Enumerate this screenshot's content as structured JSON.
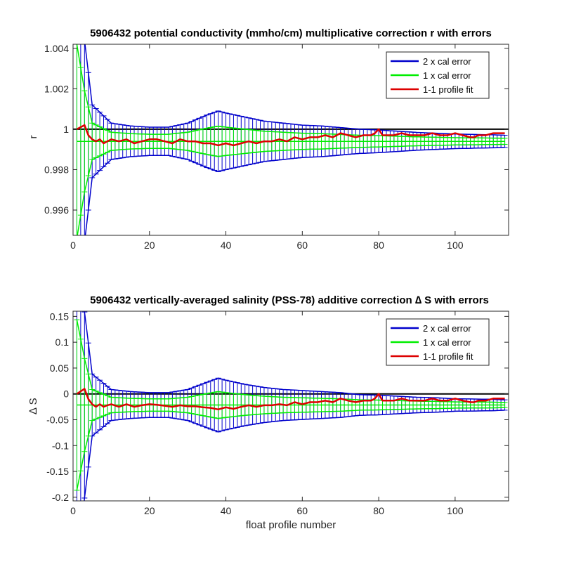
{
  "colors": {
    "two_cal": "#0000cc",
    "one_cal": "#00ee00",
    "fit": "#dd0000",
    "zero_line": "#000000"
  },
  "chart_data": [
    {
      "type": "line",
      "title": "5906432 potential conductivity (mmho/cm) multiplicative correction r with errors",
      "xlabel": "",
      "ylabel": "r",
      "xlim": [
        0,
        114
      ],
      "ylim": [
        0.99475,
        1.0042
      ],
      "xticks": [
        "0",
        "20",
        "40",
        "60",
        "80",
        "100"
      ],
      "xtick_values": [
        0,
        20,
        40,
        60,
        80,
        100
      ],
      "yticks": [
        "0.996",
        "0.998",
        "1",
        "1.002",
        "1.004"
      ],
      "ytick_values": [
        0.996,
        0.998,
        1.0,
        1.002,
        1.004
      ],
      "reference_line": 1.0,
      "legend": {
        "position": "top-right",
        "entries": [
          "2 x cal error",
          "1 x cal error",
          "1-1 profile fit"
        ]
      },
      "x_range": [
        1,
        113
      ],
      "series": [
        {
          "name": "1-1 profile fit",
          "x": [
            1,
            2,
            3,
            4,
            5,
            6,
            7,
            8,
            9,
            10,
            12,
            14,
            16,
            18,
            20,
            22,
            24,
            26,
            28,
            30,
            32,
            34,
            36,
            38,
            40,
            42,
            44,
            46,
            48,
            50,
            52,
            54,
            56,
            58,
            60,
            62,
            64,
            66,
            68,
            70,
            72,
            74,
            76,
            78,
            79,
            80,
            81,
            82,
            84,
            86,
            88,
            90,
            92,
            94,
            96,
            98,
            100,
            102,
            104,
            105,
            106,
            108,
            110,
            112,
            113
          ],
          "y": [
            1.0,
            1.0001,
            1.0002,
            0.9997,
            0.9995,
            0.9994,
            0.9995,
            0.9993,
            0.9994,
            0.9995,
            0.9994,
            0.9995,
            0.9993,
            0.9994,
            0.9995,
            0.9995,
            0.9994,
            0.9993,
            0.9995,
            0.9994,
            0.9994,
            0.9993,
            0.9993,
            0.9992,
            0.9993,
            0.9992,
            0.9993,
            0.9994,
            0.9993,
            0.9994,
            0.9994,
            0.9995,
            0.9994,
            0.9996,
            0.9995,
            0.9996,
            0.9996,
            0.9997,
            0.9996,
            0.9998,
            0.9997,
            0.9996,
            0.9997,
            0.9997,
            0.9998,
            1.0,
            0.9997,
            0.9997,
            0.9997,
            0.9998,
            0.9997,
            0.9997,
            0.9997,
            0.9998,
            0.9997,
            0.9997,
            0.9998,
            0.9997,
            0.9996,
            0.9996,
            0.9997,
            0.9997,
            0.9998,
            0.9998,
            0.9998
          ]
        },
        {
          "name": "1 x cal error",
          "center": 0.9994,
          "x": [
            1,
            3,
            5,
            10,
            15,
            20,
            25,
            30,
            35,
            38,
            40,
            45,
            50,
            55,
            60,
            65,
            70,
            75,
            80,
            85,
            90,
            95,
            100,
            105,
            110,
            113
          ],
          "err": [
            0.0048,
            0.0025,
            0.0009,
            0.00045,
            0.00038,
            0.00035,
            0.00035,
            0.00045,
            0.00065,
            0.00075,
            0.0007,
            0.0006,
            0.0005,
            0.00045,
            0.0004,
            0.00038,
            0.00034,
            0.0003,
            0.00028,
            0.00025,
            0.00022,
            0.0002,
            0.00018,
            0.00017,
            0.00016,
            0.00015
          ]
        },
        {
          "name": "2 x cal error",
          "center": 0.9994,
          "x": [
            1,
            3,
            5,
            10,
            15,
            20,
            25,
            30,
            35,
            38,
            40,
            45,
            50,
            55,
            60,
            65,
            70,
            75,
            80,
            85,
            90,
            95,
            100,
            105,
            110,
            113
          ],
          "err": [
            0.0096,
            0.005,
            0.0018,
            0.0009,
            0.00076,
            0.0007,
            0.0007,
            0.0009,
            0.0013,
            0.0015,
            0.0014,
            0.0012,
            0.001,
            0.0009,
            0.0008,
            0.00076,
            0.00068,
            0.0006,
            0.00056,
            0.0005,
            0.00044,
            0.0004,
            0.00036,
            0.00034,
            0.00032,
            0.0003
          ]
        }
      ]
    },
    {
      "type": "line",
      "title": "5906432 vertically-averaged salinity (PSS-78) additive correction ∆ S with errors",
      "xlabel": "float profile number",
      "ylabel": "∆ S",
      "xlim": [
        0,
        114
      ],
      "ylim": [
        -0.207,
        0.16
      ],
      "xticks": [
        "0",
        "20",
        "40",
        "60",
        "80",
        "100"
      ],
      "xtick_values": [
        0,
        20,
        40,
        60,
        80,
        100
      ],
      "yticks": [
        "-0.2",
        "-0.15",
        "-0.1",
        "-0.05",
        "0",
        "0.05",
        "0.1",
        "0.15"
      ],
      "ytick_values": [
        -0.2,
        -0.15,
        -0.1,
        -0.05,
        0,
        0.05,
        0.1,
        0.15
      ],
      "reference_line": 0,
      "legend": {
        "position": "top-right",
        "entries": [
          "2 x cal error",
          "1 x cal error",
          "1-1 profile fit"
        ]
      },
      "x_range": [
        1,
        113
      ],
      "series": [
        {
          "name": "1-1 profile fit",
          "x": [
            1,
            2,
            3,
            4,
            5,
            6,
            7,
            8,
            9,
            10,
            12,
            14,
            16,
            18,
            20,
            22,
            24,
            26,
            28,
            30,
            32,
            34,
            36,
            38,
            40,
            42,
            44,
            46,
            48,
            50,
            52,
            54,
            56,
            58,
            60,
            62,
            64,
            66,
            68,
            70,
            72,
            74,
            76,
            78,
            79,
            80,
            81,
            82,
            84,
            86,
            88,
            90,
            92,
            94,
            96,
            98,
            100,
            102,
            104,
            105,
            106,
            108,
            110,
            112,
            113
          ],
          "y": [
            0.0,
            0.005,
            0.01,
            -0.01,
            -0.02,
            -0.025,
            -0.02,
            -0.025,
            -0.022,
            -0.02,
            -0.025,
            -0.02,
            -0.025,
            -0.022,
            -0.02,
            -0.021,
            -0.023,
            -0.025,
            -0.022,
            -0.024,
            -0.024,
            -0.026,
            -0.027,
            -0.03,
            -0.026,
            -0.029,
            -0.025,
            -0.022,
            -0.025,
            -0.022,
            -0.022,
            -0.02,
            -0.022,
            -0.016,
            -0.02,
            -0.016,
            -0.016,
            -0.013,
            -0.016,
            -0.009,
            -0.013,
            -0.016,
            -0.013,
            -0.013,
            -0.009,
            0.0,
            -0.013,
            -0.013,
            -0.013,
            -0.009,
            -0.013,
            -0.013,
            -0.013,
            -0.009,
            -0.013,
            -0.013,
            -0.009,
            -0.013,
            -0.016,
            -0.016,
            -0.013,
            -0.013,
            -0.009,
            -0.009,
            -0.009
          ]
        },
        {
          "name": "1 x cal error",
          "center": -0.0215,
          "x": [
            1,
            3,
            5,
            10,
            15,
            20,
            25,
            30,
            35,
            38,
            40,
            45,
            50,
            55,
            60,
            65,
            70,
            75,
            80,
            85,
            90,
            95,
            100,
            105,
            110,
            113
          ],
          "err": [
            0.165,
            0.09,
            0.03,
            0.015,
            0.013,
            0.012,
            0.012,
            0.015,
            0.022,
            0.026,
            0.024,
            0.02,
            0.017,
            0.015,
            0.014,
            0.013,
            0.012,
            0.01,
            0.0095,
            0.0085,
            0.0075,
            0.007,
            0.006,
            0.0058,
            0.0055,
            0.005
          ]
        },
        {
          "name": "2 x cal error",
          "center": -0.0215,
          "x": [
            1,
            3,
            5,
            10,
            15,
            20,
            25,
            30,
            35,
            38,
            40,
            45,
            50,
            55,
            60,
            65,
            70,
            75,
            80,
            85,
            90,
            95,
            100,
            105,
            110,
            113
          ],
          "err": [
            0.33,
            0.18,
            0.06,
            0.03,
            0.026,
            0.024,
            0.024,
            0.03,
            0.044,
            0.052,
            0.048,
            0.04,
            0.034,
            0.03,
            0.028,
            0.026,
            0.024,
            0.02,
            0.019,
            0.017,
            0.015,
            0.014,
            0.012,
            0.0116,
            0.011,
            0.01
          ]
        }
      ]
    }
  ]
}
